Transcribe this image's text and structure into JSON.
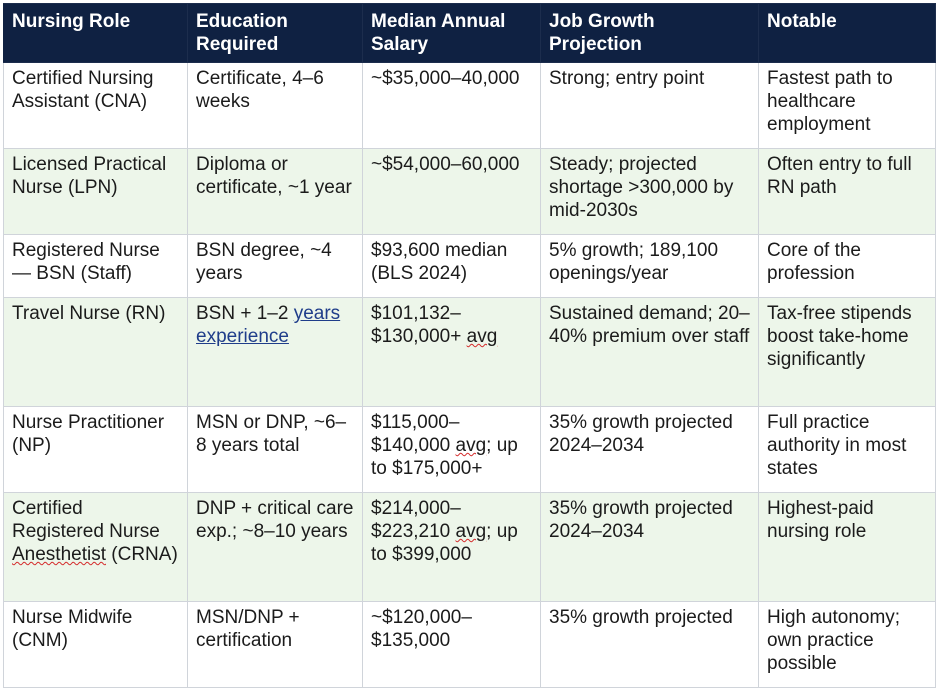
{
  "headers": [
    "Nursing Role",
    "Education Required",
    "Median Annual Salary",
    "Job Growth Projection",
    "Notable"
  ],
  "rows": [
    {
      "role": "Certified Nursing Assistant (CNA)",
      "education": "Certificate, 4–6 weeks",
      "salary": "~$35,000–40,000",
      "growth": "Strong; entry point",
      "notable": "Fastest path to healthcare employment"
    },
    {
      "role": "Licensed Practical Nurse (LPN)",
      "education": "Diploma or certificate, ~1 year",
      "salary": "~$54,000–60,000",
      "growth": "Steady; projected shortage >300,000 by mid-2030s",
      "notable": "Often entry to full RN path"
    },
    {
      "role": "Registered Nurse — BSN (Staff)",
      "education": "BSN degree, ~4 years",
      "salary": "$93,600 median (BLS 2024)",
      "growth": "5% growth; 189,100 openings/year",
      "notable": "Core of the profession"
    },
    {
      "role": "Travel Nurse (RN)",
      "education_prefix": "BSN + 1–2 ",
      "education_link": "years experience",
      "salary_prefix": "$101,132–$130,000+ ",
      "salary_marked": "avg",
      "growth": "Sustained demand; 20–40% premium over staff",
      "notable": "Tax-free stipends boost take-home significantly"
    },
    {
      "role": "Nurse Practitioner (NP)",
      "education": "MSN or DNP, ~6–8 years total",
      "salary_prefix": "$115,000–$140,000 ",
      "salary_marked": "avg",
      "salary_suffix": "; up to $175,000+",
      "growth": "35% growth projected 2024–2034",
      "notable": "Full practice authority in most states"
    },
    {
      "role_prefix": "Certified Registered Nurse ",
      "role_marked": "Anesthetist",
      "role_suffix": " (CRNA)",
      "education": "DNP + critical care exp.; ~8–10 years",
      "salary_prefix": "$214,000–$223,210 ",
      "salary_marked": "avg",
      "salary_suffix": "; up to $399,000",
      "growth": "35% growth projected 2024–2034",
      "notable": "Highest-paid nursing role"
    },
    {
      "role": "Nurse Midwife (CNM)",
      "education": "MSN/DNP + certification",
      "salary": "~$120,000–$135,000",
      "growth": "35% growth projected",
      "notable": "High autonomy; own practice possible"
    }
  ]
}
